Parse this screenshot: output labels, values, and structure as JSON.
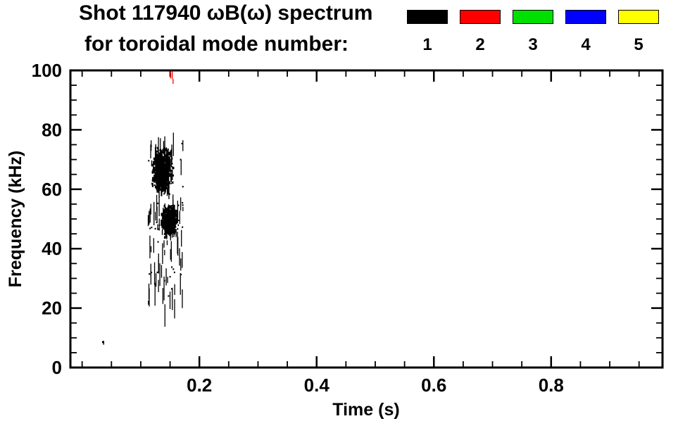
{
  "header": {
    "title": "Shot 117940 ωB(ω) spectrum",
    "subtitle": "for toroidal mode number:",
    "legend": [
      {
        "label": "1",
        "color": "#000000"
      },
      {
        "label": "2",
        "#comment": "red swatch",
        "color": "#ff0000"
      },
      {
        "label": "3",
        "color": "#00e000"
      },
      {
        "label": "4",
        "color": "#0000ff"
      },
      {
        "label": "5",
        "color": "#ffff00"
      }
    ]
  },
  "chart_data": {
    "type": "scatter",
    "title": "Shot 117940 ωB(ω) spectrum",
    "subtitle": "for toroidal mode number: 1 2 3 4 5",
    "xlabel": "Time (s)",
    "ylabel": "Frequency (kHz)",
    "xlim": [
      -0.02,
      0.99
    ],
    "ylim": [
      0,
      100
    ],
    "x_tick_values": [
      0.2,
      0.4,
      0.6,
      0.8
    ],
    "x_tick_labels": [
      "0.2",
      "0.4",
      "0.6",
      "0.8"
    ],
    "x_minor_step": 0.05,
    "y_tick_values": [
      0,
      20,
      40,
      60,
      80,
      100
    ],
    "y_tick_labels": [
      "0",
      "20",
      "40",
      "60",
      "80",
      "100"
    ],
    "y_minor_step": 5,
    "grid": false,
    "legend_position": "top-right-above-plot",
    "frame_color": "#000000",
    "background_color": "#ffffff",
    "seed": 42,
    "series": [
      {
        "name": "n1-upper-burst",
        "mode_number": 1,
        "color": "#000000",
        "style": "blob",
        "t_range": [
          0.115,
          0.158
        ],
        "f_range": [
          57,
          76
        ],
        "count": 650,
        "max_len": 14
      },
      {
        "name": "n1-lower-burst",
        "mode_number": 1,
        "color": "#000000",
        "style": "blob",
        "t_range": [
          0.132,
          0.168
        ],
        "f_range": [
          43,
          56
        ],
        "count": 500,
        "max_len": 14
      },
      {
        "name": "n1-streaks",
        "mode_number": 1,
        "color": "#000000",
        "style": "vline",
        "t_range": [
          0.112,
          0.172
        ],
        "f_range": [
          21,
          80
        ],
        "count": 110,
        "max_len": 30
      },
      {
        "name": "n2-top-mark",
        "mode_number": 2,
        "color": "#ff0000",
        "style": "vline",
        "t_range": [
          0.15,
          0.156
        ],
        "f_range": [
          97,
          100
        ],
        "count": 4,
        "max_len": 8
      },
      {
        "name": "n1-isolated-dot",
        "mode_number": 1,
        "color": "#000000",
        "style": "blob",
        "t_range": [
          0.035,
          0.038
        ],
        "f_range": [
          8,
          9
        ],
        "count": 2,
        "max_len": 3
      }
    ]
  }
}
